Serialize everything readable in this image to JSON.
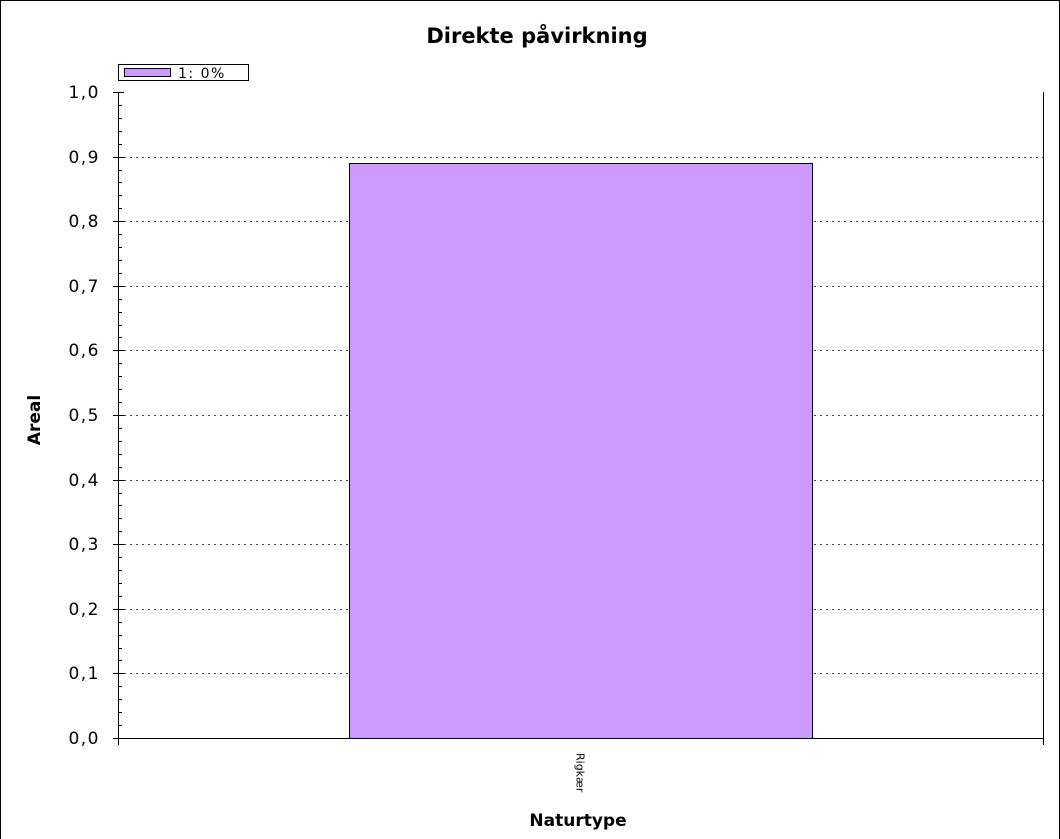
{
  "chart_data": {
    "type": "bar",
    "title": "Direkte påvirkning",
    "xlabel": "Naturtype",
    "ylabel": "Areal",
    "categories": [
      "Rigkær"
    ],
    "series": [
      {
        "name": "1: 0%",
        "values": [
          0.89
        ],
        "color": "#CC99FF"
      }
    ],
    "ylim": [
      0,
      1
    ],
    "ystep": 0.1,
    "yminor_step": 0.02,
    "ytick_labels": [
      "0,0",
      "0,1",
      "0,2",
      "0,3",
      "0,4",
      "0,5",
      "0,6",
      "0,7",
      "0,8",
      "0,9",
      "1,0"
    ],
    "grid": true,
    "legend": "top-left",
    "colors": {
      "bar_border": "#000000",
      "background": "#FFFFFF"
    }
  }
}
